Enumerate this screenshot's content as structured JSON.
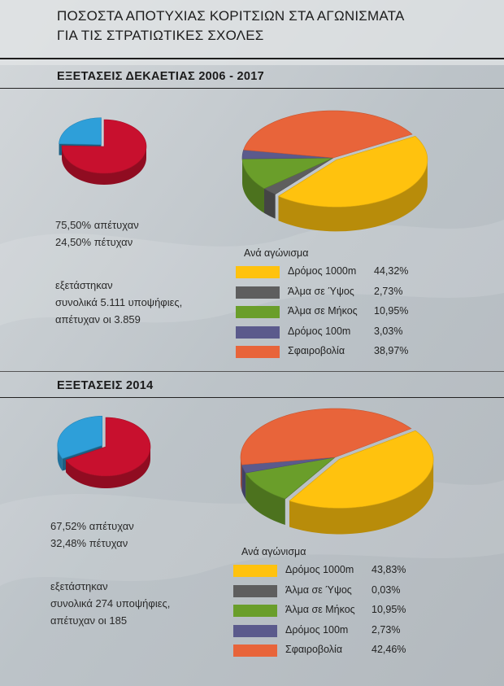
{
  "title_line1": "ΠΟΣΟΣΤΑ ΑΠΟΤΥΧΙΑΣ ΚΟΡΙΤΣΙΩΝ ΣΤΑ ΑΓΩΝΙΣΜΑΤΑ",
  "title_line2": "ΓΙΑ ΤΙΣ ΣΤΡΑΤΙΩΤΙΚΕΣ ΣΧΟΛΕΣ",
  "colors": {
    "fail_red": "#c8102e",
    "pass_blue": "#2e9fd9",
    "dromos1000": "#ffc20e",
    "alma_ypsos": "#5e5e5e",
    "alma_mikos": "#6a9e2a",
    "dromos100": "#5b5a8c",
    "sfairovolia": "#e8643a"
  },
  "sections": [
    {
      "heading": "ΕΞΕΤΑΣΕΙΣ ΔΕΚΑΕΤΙΑΣ 2006 - 2017",
      "failed_text": "75,50% απέτυχαν",
      "passed_text": "24,50% πέτυχαν",
      "examined_line1": "εξετάστηκαν",
      "examined_line2": "συνολικά 5.111 υποψήφιες,",
      "examined_line3": "απέτυχαν οι 3.859",
      "legend_title": "Ανά αγώνισμα"
    },
    {
      "heading": "ΕΞΕΤΑΣΕΙΣ 2014",
      "failed_text": "67,52% απέτυχαν",
      "passed_text": "32,48% πέτυχαν",
      "examined_line1": "εξετάστηκαν",
      "examined_line2": "συνολικά 274 υποψήφιες,",
      "examined_line3": "απέτυχαν οι 185",
      "legend_title": "Ανά αγώνισμα"
    }
  ],
  "chart_data": [
    {
      "type": "pie",
      "title": "ΕΞΕΤΑΣΕΙΣ ΔΕΚΑΕΤΙΑΣ 2006 - 2017",
      "labels": [
        "απέτυχαν",
        "πέτυχαν"
      ],
      "values": [
        75.5,
        24.5
      ],
      "colors": [
        "#c8102e",
        "#2e9fd9"
      ]
    },
    {
      "type": "pie",
      "title": "Ανά αγώνισμα",
      "labels": [
        "Δρόμος 1000m",
        "Άλμα σε Ύψος",
        "Άλμα σε Μήκος",
        "Δρόμος 100m",
        "Σφαιροβολία"
      ],
      "values": [
        44.32,
        2.73,
        10.95,
        3.03,
        38.97
      ],
      "value_labels": [
        "44,32%",
        "2,73%",
        "10,95%",
        "3,03%",
        "38,97%"
      ],
      "colors": [
        "#ffc20e",
        "#5e5e5e",
        "#6a9e2a",
        "#5b5a8c",
        "#e8643a"
      ]
    },
    {
      "type": "pie",
      "title": "ΕΞΕΤΑΣΕΙΣ 2014",
      "labels": [
        "απέτυχαν",
        "πέτυχαν"
      ],
      "values": [
        67.52,
        32.48
      ],
      "colors": [
        "#c8102e",
        "#2e9fd9"
      ]
    },
    {
      "type": "pie",
      "title": "Ανά αγώνισμα",
      "labels": [
        "Δρόμος 1000m",
        "Άλμα σε Ύψος",
        "Άλμα σε Μήκος",
        "Δρόμος 100m",
        "Σφαιροβολία"
      ],
      "values": [
        43.83,
        0.03,
        10.95,
        2.73,
        42.46
      ],
      "value_labels": [
        "43,83%",
        "0,03%",
        "10,95%",
        "2,73%",
        "42,46%"
      ],
      "colors": [
        "#ffc20e",
        "#5e5e5e",
        "#6a9e2a",
        "#5b5a8c",
        "#e8643a"
      ]
    }
  ]
}
